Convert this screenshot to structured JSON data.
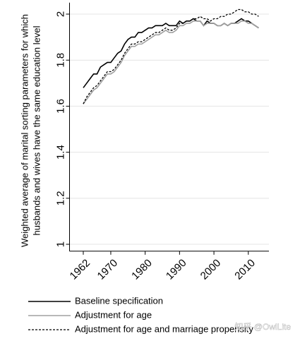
{
  "chart_data": {
    "type": "line",
    "ylabel": [
      "Weighted average of marital sorting parameters for which",
      "husbands and wives have the same education level"
    ],
    "x": [
      1962,
      1963,
      1964,
      1965,
      1966,
      1967,
      1968,
      1969,
      1970,
      1971,
      1972,
      1973,
      1974,
      1975,
      1976,
      1977,
      1978,
      1979,
      1980,
      1981,
      1982,
      1983,
      1984,
      1985,
      1986,
      1987,
      1988,
      1989,
      1990,
      1991,
      1992,
      1993,
      1994,
      1995,
      1996,
      1997,
      1998,
      1999,
      2000,
      2001,
      2002,
      2003,
      2004,
      2005,
      2006,
      2007,
      2008,
      2009,
      2010,
      2011,
      2012,
      2013
    ],
    "series": [
      {
        "name": "Baseline specification",
        "color": "#000000",
        "dash": "none",
        "width": 1.6,
        "values": [
          1.68,
          1.7,
          1.72,
          1.74,
          1.74,
          1.77,
          1.78,
          1.79,
          1.79,
          1.81,
          1.83,
          1.84,
          1.87,
          1.89,
          1.9,
          1.9,
          1.92,
          1.92,
          1.93,
          1.94,
          1.94,
          1.95,
          1.95,
          1.95,
          1.96,
          1.95,
          1.95,
          1.95,
          1.97,
          1.96,
          1.97,
          1.97,
          1.98,
          1.97,
          1.97,
          1.95,
          1.97,
          1.96,
          1.96,
          1.95,
          1.95,
          1.96,
          1.95,
          1.96,
          1.96,
          1.97,
          1.98,
          1.97,
          1.97,
          1.96,
          1.95,
          1.94
        ]
      },
      {
        "name": "Adjustment for age",
        "color": "#a0a0a0",
        "dash": "none",
        "width": 1.6,
        "values": [
          1.61,
          1.63,
          1.65,
          1.67,
          1.68,
          1.7,
          1.72,
          1.74,
          1.74,
          1.75,
          1.77,
          1.79,
          1.82,
          1.84,
          1.86,
          1.86,
          1.87,
          1.87,
          1.88,
          1.89,
          1.9,
          1.91,
          1.91,
          1.92,
          1.93,
          1.92,
          1.92,
          1.93,
          1.95,
          1.95,
          1.96,
          1.96,
          1.97,
          1.97,
          1.97,
          1.95,
          1.96,
          1.96,
          1.96,
          1.95,
          1.95,
          1.96,
          1.95,
          1.96,
          1.96,
          1.96,
          1.97,
          1.97,
          1.96,
          1.96,
          1.95,
          1.94
        ]
      },
      {
        "name": "Adjustment for age and marriage propensity",
        "color": "#000000",
        "dash": "3,2",
        "width": 1.3,
        "values": [
          1.61,
          1.64,
          1.66,
          1.68,
          1.69,
          1.71,
          1.73,
          1.75,
          1.75,
          1.76,
          1.78,
          1.8,
          1.83,
          1.85,
          1.87,
          1.87,
          1.88,
          1.88,
          1.89,
          1.9,
          1.91,
          1.92,
          1.92,
          1.93,
          1.94,
          1.93,
          1.93,
          1.94,
          1.96,
          1.96,
          1.97,
          1.97,
          1.98,
          1.98,
          1.99,
          1.98,
          1.98,
          1.97,
          1.98,
          1.98,
          1.99,
          1.99,
          2.0,
          2.0,
          2.01,
          2.02,
          2.02,
          2.01,
          2.01,
          2.0,
          2.0,
          1.99
        ]
      }
    ],
    "xlim": [
      1958,
      2016
    ],
    "xticks": [
      1962,
      1970,
      1980,
      1990,
      2000,
      2010
    ],
    "ylim": [
      0.97,
      2.05
    ],
    "yticks": [
      1,
      1.2,
      1.4,
      1.6,
      1.8,
      2
    ],
    "grid": true,
    "watermark": "知乎 @OwlLite"
  }
}
